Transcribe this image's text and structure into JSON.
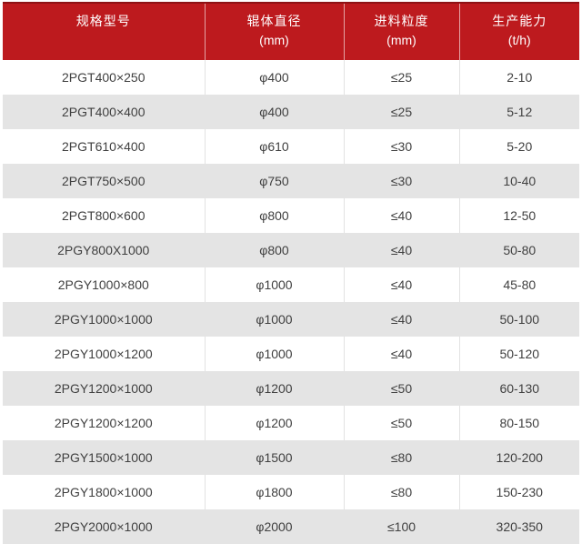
{
  "chart_data": {
    "type": "table",
    "title": "",
    "columns": [
      {
        "label": "规格型号",
        "unit": ""
      },
      {
        "label": "辊体直径",
        "unit": "(mm)"
      },
      {
        "label": "进料粒度",
        "unit": "(mm)"
      },
      {
        "label": "生产能力",
        "unit": "(t/h)"
      }
    ],
    "rows": [
      [
        "2PGT400×250",
        "φ400",
        "≤25",
        "2-10"
      ],
      [
        "2PGT400×400",
        "φ400",
        "≤25",
        "5-12"
      ],
      [
        "2PGT610×400",
        "φ610",
        "≤30",
        "5-20"
      ],
      [
        "2PGT750×500",
        "φ750",
        "≤30",
        "10-40"
      ],
      [
        "2PGT800×600",
        "φ800",
        "≤40",
        "12-50"
      ],
      [
        "2PGY800X1000",
        "φ800",
        "≤40",
        "50-80"
      ],
      [
        "2PGY1000×800",
        "φ1000",
        "≤40",
        "45-80"
      ],
      [
        "2PGY1000×1000",
        "φ1000",
        "≤40",
        "50-100"
      ],
      [
        "2PGY1000×1200",
        "φ1000",
        "≤40",
        "50-120"
      ],
      [
        "2PGY1200×1000",
        "φ1200",
        "≤50",
        "60-130"
      ],
      [
        "2PGY1200×1200",
        "φ1200",
        "≤50",
        "80-150"
      ],
      [
        "2PGY1500×1000",
        "φ1500",
        "≤80",
        "120-200"
      ],
      [
        "2PGY1800×1000",
        "φ1800",
        "≤80",
        "150-230"
      ],
      [
        "2PGY2000×1000",
        "φ2000",
        "≤100",
        "320-350"
      ]
    ]
  },
  "colors": {
    "header_bg": "#bd1a1e",
    "header_top_border": "#8e1215",
    "header_text": "#ffffff",
    "row_alt_bg": "#e4e4e4",
    "body_text": "#404040"
  }
}
